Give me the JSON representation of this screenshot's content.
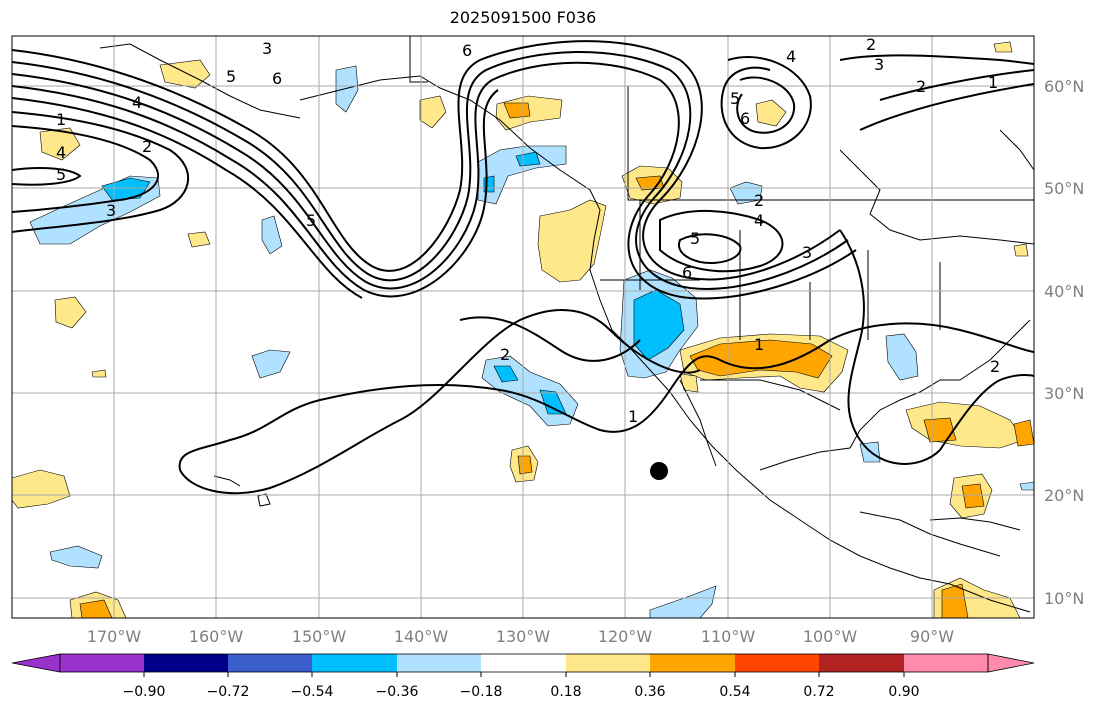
{
  "title": "2025091500 F036",
  "map": {
    "lat_labels": [
      "60°N",
      "50°N",
      "40°N",
      "30°N",
      "20°N",
      "10°N"
    ],
    "lon_labels": [
      "170°W",
      "160°W",
      "150°W",
      "140°W",
      "130°W",
      "120°W",
      "110°W",
      "100°W",
      "90°W"
    ],
    "contour_labels": [
      "1",
      "2",
      "3",
      "4",
      "5",
      "6"
    ],
    "marker": "black dot"
  },
  "colorbar": {
    "tick_labels": [
      "−0.90",
      "−0.72",
      "−0.54",
      "−0.36",
      "−0.18",
      "0.18",
      "0.36",
      "0.54",
      "0.72",
      "0.90"
    ],
    "colors": [
      "#9932cc",
      "#00008b",
      "#3a5fcd",
      "#00bfff",
      "#b0e2ff",
      "#ffffff",
      "#ffe88a",
      "#ffa500",
      "#ff4500",
      "#b22222",
      "#ff8aad"
    ]
  },
  "colors": {
    "grid": "#a9a9a9",
    "contour": "#000000",
    "coast": "#000000"
  }
}
